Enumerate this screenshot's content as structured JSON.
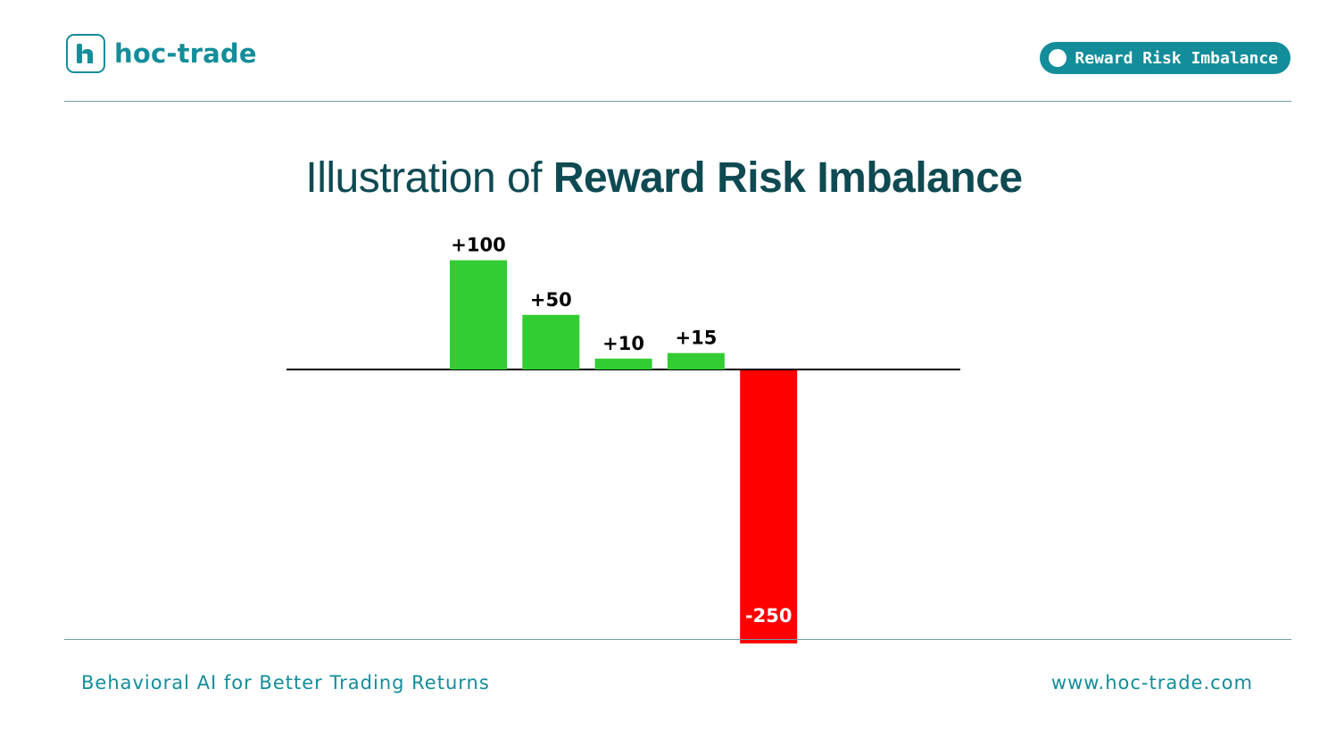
{
  "brand": {
    "name": "hoc-trade",
    "accent_color": "#138d9a",
    "logo_icon": "h-logo-icon"
  },
  "topic_pill": {
    "label": "Reward Risk Imbalance"
  },
  "title": {
    "light": "Illustration of ",
    "strong": "Reward Risk Imbalance"
  },
  "footer": {
    "tagline": "Behavioral AI for Better Trading Returns",
    "website": "www.hoc-trade.com"
  },
  "chart_data": {
    "type": "bar",
    "title": "Illustration of Reward Risk Imbalance",
    "xlabel": "",
    "ylabel": "",
    "grid": false,
    "legend": "none",
    "ylim": [
      -250,
      100
    ],
    "categories": [
      "",
      "",
      "",
      "",
      "",
      "",
      "",
      "",
      "",
      ""
    ],
    "values": [
      0,
      0,
      100,
      50,
      10,
      15,
      -250,
      0,
      0,
      0
    ],
    "labels": [
      "",
      "",
      "+100",
      "+50",
      "+10",
      "+15",
      "-250",
      "",
      "",
      ""
    ],
    "positive_color": "#33cc33",
    "negative_color": "#ff0000"
  }
}
